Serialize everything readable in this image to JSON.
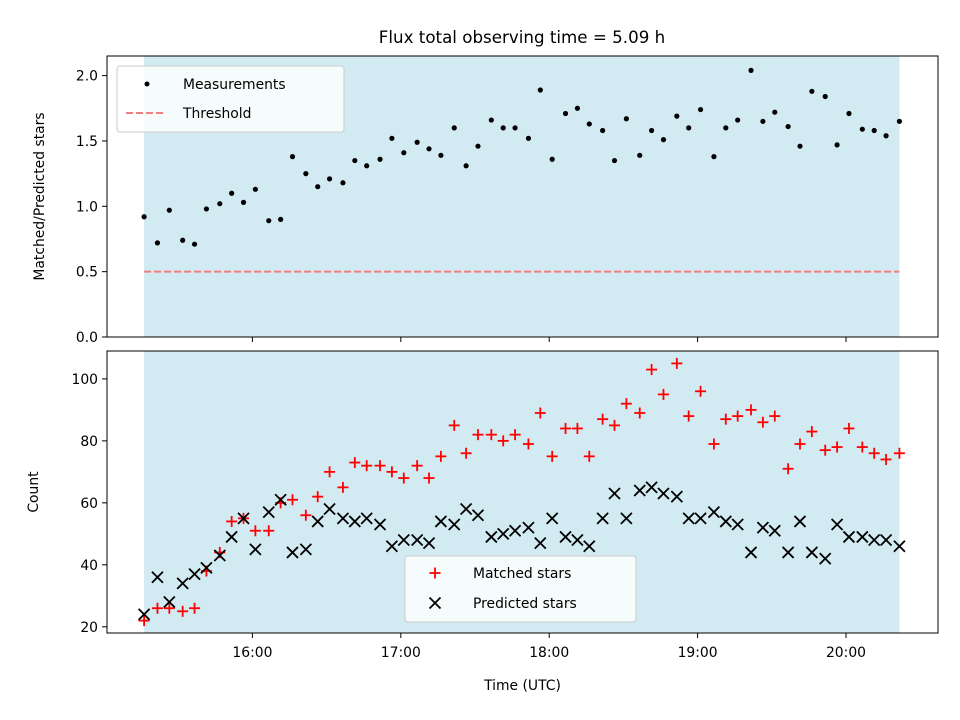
{
  "figure": {
    "title": "Flux total observing time = 5.09 h",
    "colors": {
      "span": "#add8e6",
      "measurement": "#000000",
      "threshold": "#f08080",
      "matched": "#ff0000",
      "predicted": "#000000"
    }
  },
  "chart_data": [
    {
      "type": "scatter",
      "ylabel": "Matched/Predicted stars",
      "ylim": [
        0,
        2.15
      ],
      "xlim": [
        15.02,
        20.62
      ],
      "yticks": [
        0.0,
        0.5,
        1.0,
        1.5,
        2.0
      ],
      "ytick_labels": [
        "0.0",
        "0.5",
        "1.0",
        "1.5",
        "2.0"
      ],
      "observing_span": [
        15.27,
        20.36
      ],
      "threshold": 0.5,
      "legend": {
        "placement": "upper-left",
        "entries": [
          "Measurements",
          "Threshold"
        ]
      },
      "series": [
        {
          "name": "Measurements",
          "marker": "dot",
          "x": [
            15.27,
            15.36,
            15.44,
            15.53,
            15.61,
            15.69,
            15.78,
            15.86,
            15.94,
            16.02,
            16.11,
            16.19,
            16.27,
            16.36,
            16.44,
            16.52,
            16.61,
            16.69,
            16.77,
            16.86,
            16.94,
            17.02,
            17.11,
            17.19,
            17.27,
            17.36,
            17.44,
            17.52,
            17.61,
            17.69,
            17.77,
            17.86,
            17.94,
            18.02,
            18.11,
            18.19,
            18.27,
            18.36,
            18.44,
            18.52,
            18.61,
            18.69,
            18.77,
            18.86,
            18.94,
            19.02,
            19.11,
            19.19,
            19.27,
            19.36,
            19.44,
            19.52,
            19.61,
            19.69,
            19.77,
            19.86,
            19.94,
            20.02,
            20.11,
            20.19,
            20.27,
            20.36
          ],
          "y": [
            0.92,
            0.72,
            0.97,
            0.74,
            0.71,
            0.98,
            1.02,
            1.1,
            1.03,
            1.13,
            0.89,
            0.9,
            1.38,
            1.25,
            1.15,
            1.21,
            1.18,
            1.35,
            1.31,
            1.36,
            1.52,
            1.41,
            1.49,
            1.44,
            1.39,
            1.6,
            1.31,
            1.46,
            1.66,
            1.6,
            1.6,
            1.52,
            1.89,
            1.36,
            1.71,
            1.75,
            1.63,
            1.58,
            1.35,
            1.67,
            1.39,
            1.58,
            1.51,
            1.69,
            1.6,
            1.74,
            1.38,
            1.6,
            1.66,
            2.04,
            1.65,
            1.72,
            1.61,
            1.46,
            1.88,
            1.84,
            1.47,
            1.71,
            1.59,
            1.58,
            1.54,
            1.65
          ]
        },
        {
          "name": "Threshold",
          "marker": "dashed-line",
          "x": [
            15.27,
            20.36
          ],
          "y": [
            0.5,
            0.5
          ]
        }
      ]
    },
    {
      "type": "scatter",
      "ylabel": "Count",
      "xlabel": "Time (UTC)",
      "ylim": [
        18,
        109
      ],
      "xlim": [
        15.02,
        20.62
      ],
      "yticks": [
        20,
        40,
        60,
        80,
        100
      ],
      "ytick_labels": [
        "20",
        "40",
        "60",
        "80",
        "100"
      ],
      "xticks": [
        16,
        17,
        18,
        19,
        20
      ],
      "xtick_labels": [
        "16:00",
        "17:00",
        "18:00",
        "19:00",
        "20:00"
      ],
      "observing_span": [
        15.27,
        20.36
      ],
      "legend": {
        "placement": "lower-center",
        "entries": [
          "Matched stars",
          "Predicted stars"
        ]
      },
      "series": [
        {
          "name": "Matched stars",
          "marker": "plus",
          "x": [
            15.27,
            15.36,
            15.44,
            15.53,
            15.61,
            15.69,
            15.78,
            15.86,
            15.94,
            16.02,
            16.11,
            16.19,
            16.27,
            16.36,
            16.44,
            16.52,
            16.61,
            16.69,
            16.77,
            16.86,
            16.94,
            17.02,
            17.11,
            17.19,
            17.27,
            17.36,
            17.44,
            17.52,
            17.61,
            17.69,
            17.77,
            17.86,
            17.94,
            18.02,
            18.11,
            18.19,
            18.27,
            18.36,
            18.44,
            18.52,
            18.61,
            18.69,
            18.77,
            18.86,
            18.94,
            19.02,
            19.11,
            19.19,
            19.27,
            19.36,
            19.44,
            19.52,
            19.61,
            19.69,
            19.77,
            19.86,
            19.94,
            20.02,
            20.11,
            20.19,
            20.27,
            20.36
          ],
          "y": [
            22,
            26,
            26,
            25,
            26,
            38,
            44,
            54,
            55,
            51,
            51,
            60,
            61,
            56,
            62,
            70,
            65,
            73,
            72,
            72,
            70,
            68,
            72,
            68,
            75,
            85,
            76,
            82,
            82,
            80,
            82,
            79,
            89,
            75,
            84,
            84,
            75,
            87,
            85,
            92,
            89,
            103,
            95,
            105,
            88,
            96,
            79,
            87,
            88,
            90,
            86,
            88,
            71,
            79,
            83,
            77,
            78,
            84,
            78,
            76,
            74,
            76
          ]
        },
        {
          "name": "Predicted stars",
          "marker": "x",
          "x": [
            15.27,
            15.36,
            15.44,
            15.53,
            15.61,
            15.69,
            15.78,
            15.86,
            15.94,
            16.02,
            16.11,
            16.19,
            16.27,
            16.36,
            16.44,
            16.52,
            16.61,
            16.69,
            16.77,
            16.86,
            16.94,
            17.02,
            17.11,
            17.19,
            17.27,
            17.36,
            17.44,
            17.52,
            17.61,
            17.69,
            17.77,
            17.86,
            17.94,
            18.02,
            18.11,
            18.19,
            18.27,
            18.36,
            18.44,
            18.52,
            18.61,
            18.69,
            18.77,
            18.86,
            18.94,
            19.02,
            19.11,
            19.19,
            19.27,
            19.36,
            19.44,
            19.52,
            19.61,
            19.69,
            19.77,
            19.86,
            19.94,
            20.02,
            20.11,
            20.19,
            20.27,
            20.36
          ],
          "y": [
            24,
            36,
            28,
            34,
            37,
            39,
            43,
            49,
            55,
            45,
            57,
            61,
            44,
            45,
            54,
            58,
            55,
            54,
            55,
            53,
            46,
            48,
            48,
            47,
            54,
            53,
            58,
            56,
            49,
            50,
            51,
            52,
            47,
            55,
            49,
            48,
            46,
            55,
            63,
            55,
            64,
            65,
            63,
            62,
            55,
            55,
            57,
            54,
            53,
            44,
            52,
            51,
            44,
            54,
            44,
            42,
            53,
            49,
            49,
            48,
            48,
            46
          ]
        }
      ]
    }
  ]
}
